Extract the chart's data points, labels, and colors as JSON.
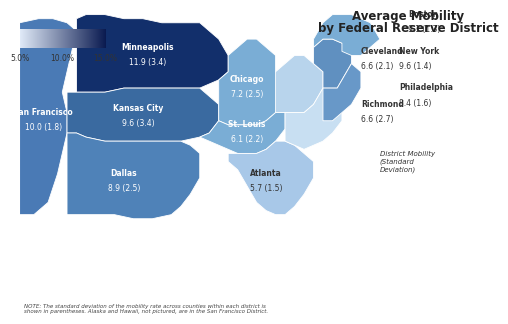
{
  "title_line1": "Average Mobility",
  "title_line2": "by Federal Reserve District",
  "districts": [
    {
      "name": "San Francisco",
      "value": "10.0",
      "std": "1.8",
      "color": "#4a7ab5",
      "text_color": "white"
    },
    {
      "name": "Minneapolis",
      "value": "11.9",
      "std": "3.4",
      "color": "#122f6b",
      "text_color": "white"
    },
    {
      "name": "Kansas City",
      "value": "9.6",
      "std": "3.4",
      "color": "#3a6aa0",
      "text_color": "white"
    },
    {
      "name": "Dallas",
      "value": "8.9",
      "std": "2.5",
      "color": "#4f82b8",
      "text_color": "white"
    },
    {
      "name": "Chicago",
      "value": "7.2",
      "std": "2.5",
      "color": "#7aadd5",
      "text_color": "white"
    },
    {
      "name": "St. Louis",
      "value": "6.1",
      "std": "2.2",
      "color": "#7aadd5",
      "text_color": "white"
    },
    {
      "name": "Atlanta",
      "value": "5.7",
      "std": "1.5",
      "color": "#a8c8e8",
      "text_color": "#333333"
    },
    {
      "name": "Cleveland",
      "value": "6.6",
      "std": "2.1",
      "color": "#b8d4ec",
      "text_color": "#333333"
    },
    {
      "name": "Richmond",
      "value": "6.6",
      "std": "2.7",
      "color": "#c8dff2",
      "text_color": "#333333"
    },
    {
      "name": "New York",
      "value": "9.6",
      "std": "1.4",
      "color": "#6090c0",
      "text_color": "#333333"
    },
    {
      "name": "Philadelphia",
      "value": "8.4",
      "std": "1.6",
      "color": "#6898c8",
      "text_color": "#333333"
    },
    {
      "name": "Boston",
      "value": "9.1",
      "std": "1.3",
      "color": "#7aadd5",
      "text_color": "#333333"
    }
  ],
  "legend_ticks": [
    "5.0%",
    "10.0%",
    "15.0%"
  ],
  "note": "NOTE: The standard deviation of the mobility rate across counties within each district is\nshown in parentheses. Alaska and Hawaii, not pictured, are in the San Francisco District.",
  "background_color": "#ffffff",
  "colorbar_colors": [
    "#e8eef8",
    "#0a1a50"
  ]
}
